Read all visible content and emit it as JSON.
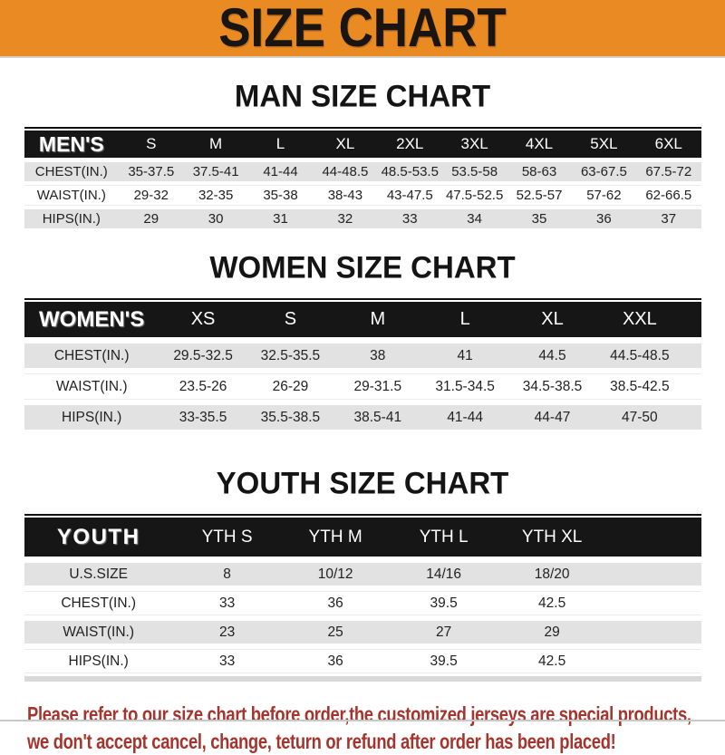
{
  "banner": {
    "title": "SIZE CHART"
  },
  "sections": [
    {
      "id": "men",
      "title": "MAN SIZE CHART",
      "header_label": "MEN'S",
      "columns": [
        "S",
        "M",
        "L",
        "XL",
        "2XL",
        "3XL",
        "4XL",
        "5XL",
        "6XL"
      ],
      "rows": [
        {
          "label": "CHEST(IN.)",
          "values": [
            "35-37.5",
            "37.5-41",
            "41-44",
            "44-48.5",
            "48.5-53.5",
            "53.5-58",
            "58-63",
            "63-67.5",
            "67.5-72"
          ]
        },
        {
          "label": "WAIST(IN.)",
          "values": [
            "29-32",
            "32-35",
            "35-38",
            "38-43",
            "43-47.5",
            "47.5-52.5",
            "52.5-57",
            "57-62",
            "62-66.5"
          ]
        },
        {
          "label": "HIPS(IN.)",
          "values": [
            "29",
            "30",
            "31",
            "32",
            "33",
            "34",
            "35",
            "36",
            "37"
          ]
        }
      ]
    },
    {
      "id": "women",
      "title": "WOMEN SIZE CHART",
      "header_label": "WOMEN'S",
      "columns": [
        "XS",
        "S",
        "M",
        "L",
        "XL",
        "XXL"
      ],
      "rows": [
        {
          "label": "CHEST(IN.)",
          "values": [
            "29.5-32.5",
            "32.5-35.5",
            "38",
            "41",
            "44.5",
            "44.5-48.5"
          ]
        },
        {
          "label": "WAIST(IN.)",
          "values": [
            "23.5-26",
            "26-29",
            "29-31.5",
            "31.5-34.5",
            "34.5-38.5",
            "38.5-42.5"
          ]
        },
        {
          "label": "HIPS(IN.)",
          "values": [
            "33-35.5",
            "35.5-38.5",
            "38.5-41",
            "41-44",
            "44-47",
            "47-50"
          ]
        }
      ]
    },
    {
      "id": "youth",
      "title": "YOUTH SIZE CHART",
      "header_label": "YOUTH",
      "columns": [
        "YTH S",
        "YTH M",
        "YTH L",
        "YTH XL"
      ],
      "rows": [
        {
          "label": "U.S.SIZE",
          "values": [
            "8",
            "10/12",
            "14/16",
            "18/20"
          ]
        },
        {
          "label": "CHEST(IN.)",
          "values": [
            "33",
            "36",
            "39.5",
            "42.5"
          ]
        },
        {
          "label": "WAIST(IN.)",
          "values": [
            "23",
            "25",
            "27",
            "29"
          ]
        },
        {
          "label": "HIPS(IN.)",
          "values": [
            "33",
            "36",
            "39.5",
            "42.5"
          ]
        }
      ]
    }
  ],
  "footer": {
    "line1": "Please refer to our size chart before order,the customized jerseys are special products,",
    "line2": "we don't accept cancel, change, teturn or refund after order has been placed!"
  },
  "colors": {
    "banner-bg": "#EA8A22",
    "band-black": "#161616",
    "row-gray": "#E2E2E2",
    "note-red": "#A5342D"
  }
}
